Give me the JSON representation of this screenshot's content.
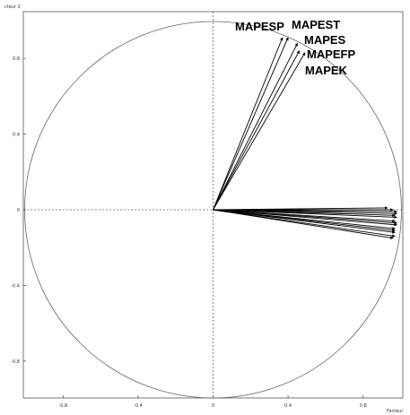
{
  "chart_data": {
    "type": "scatter",
    "subtype": "correlation-circle",
    "xlabel": "Facteur",
    "ylabel": "cteur 2",
    "xlim": [
      -1.0,
      1.0
    ],
    "ylim": [
      -1.0,
      1.0
    ],
    "x_ticks": [
      -0.8,
      -0.4,
      0,
      0.4,
      0.8
    ],
    "x_tick_labels": [
      "-0.8",
      "-0.4",
      "0",
      "0.4",
      "0.8"
    ],
    "y_ticks": [
      0.8,
      0.4,
      0,
      -0.4,
      -0.8
    ],
    "y_tick_labels": [
      "0.8",
      "0.4",
      "0",
      "-0.4",
      "-0.8"
    ],
    "grid": false,
    "reference_lines": {
      "x": 0,
      "y": 0,
      "style": "dotted"
    },
    "unit_circle": true,
    "labeled_vectors": [
      {
        "name": "MAPESP",
        "x": 0.37,
        "y": 0.91
      },
      {
        "name": "MAPEST",
        "x": 0.4,
        "y": 0.91
      },
      {
        "name": "MAPES",
        "x": 0.45,
        "y": 0.88
      },
      {
        "name": "MAPEFP",
        "x": 0.46,
        "y": 0.84
      },
      {
        "name": "MAPEK",
        "x": 0.49,
        "y": 0.83
      }
    ],
    "unlabeled_vectors": [
      {
        "x": 0.93,
        "y": 0.01
      },
      {
        "x": 0.96,
        "y": 0.0
      },
      {
        "x": 0.98,
        "y": -0.01
      },
      {
        "x": 0.98,
        "y": -0.02
      },
      {
        "x": 0.97,
        "y": -0.03
      },
      {
        "x": 0.98,
        "y": -0.04
      },
      {
        "x": 0.97,
        "y": -0.06
      },
      {
        "x": 0.98,
        "y": -0.07
      },
      {
        "x": 0.98,
        "y": -0.08
      },
      {
        "x": 0.97,
        "y": -0.1
      },
      {
        "x": 0.97,
        "y": -0.11
      },
      {
        "x": 0.97,
        "y": -0.12
      },
      {
        "x": 0.97,
        "y": -0.14
      },
      {
        "x": 0.96,
        "y": -0.15
      }
    ]
  }
}
